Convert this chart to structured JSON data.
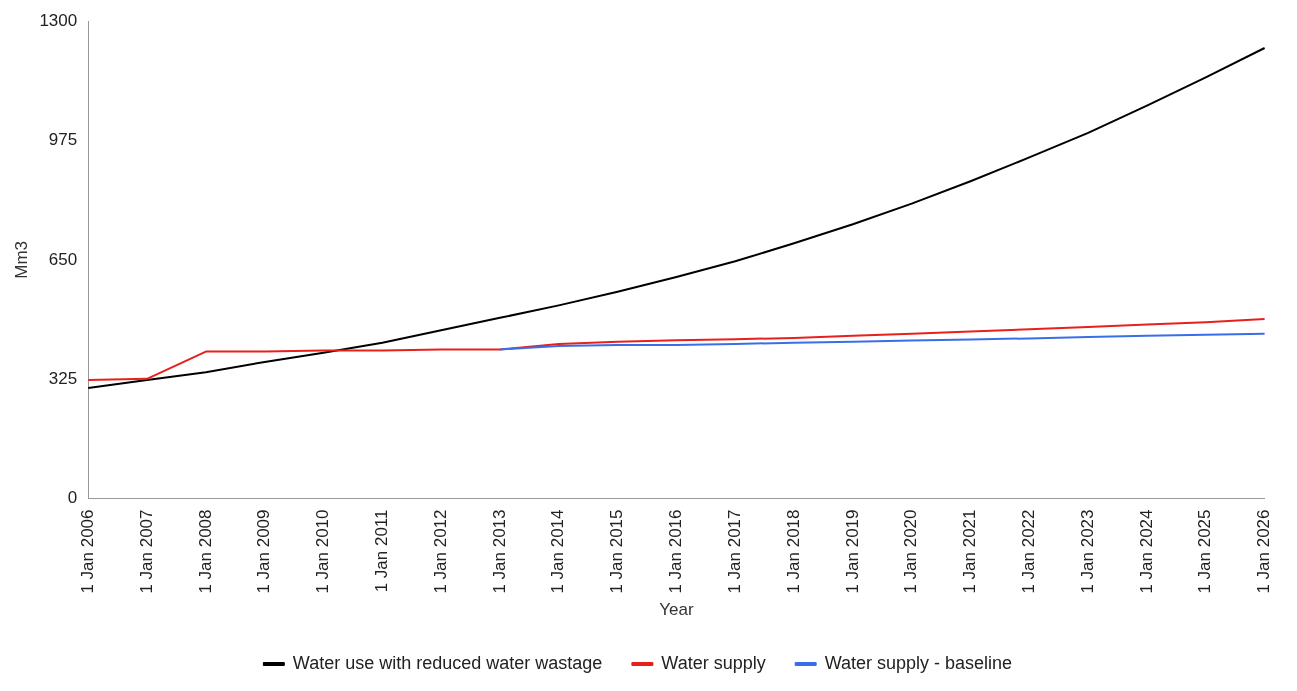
{
  "chart_data": {
    "type": "line",
    "xlabel": "Year",
    "ylabel": "Mm3",
    "categories": [
      "1 Jan 2006",
      "1 Jan 2007",
      "1 Jan 2008",
      "1 Jan 2009",
      "1 Jan 2010",
      "1 Jan 2011",
      "1 Jan 2012",
      "1 Jan 2013",
      "1 Jan 2014",
      "1 Jan 2015",
      "1 Jan 2016",
      "1 Jan 2017",
      "1 Jan 2018",
      "1 Jan 2019",
      "1 Jan 2020",
      "1 Jan 2021",
      "1 Jan 2022",
      "1 Jan 2023",
      "1 Jan 2024",
      "1 Jan 2025",
      "1 Jan 2026"
    ],
    "series": [
      {
        "name": "Water use with reduced water wastage",
        "color": "#000000",
        "values": [
          301,
          323,
          344,
          372,
          397,
          424,
          458,
          492,
          526,
          563,
          603,
          646,
          695,
          747,
          803,
          864,
          929,
          996,
          1070,
          1147,
          1227
        ]
      },
      {
        "name": "Water supply",
        "color": "#e8201c",
        "values": [
          323,
          326,
          400,
          400,
          403,
          403,
          406,
          406,
          421,
          427,
          431,
          434,
          437,
          443,
          449,
          455,
          461,
          467,
          474,
          480,
          489
        ]
      },
      {
        "name": "Water supply - baseline",
        "color": "#3a6ee8",
        "values": [
          null,
          null,
          null,
          null,
          null,
          null,
          null,
          406,
          415,
          418,
          418,
          421,
          424,
          427,
          430,
          433,
          436,
          440,
          443,
          446,
          449
        ]
      }
    ],
    "ylim": [
      0,
      1300
    ],
    "yticks": [
      0,
      325,
      650,
      975,
      1300
    ],
    "grid": false,
    "legend": "bottom",
    "marker": "none",
    "line_style": "solid"
  }
}
